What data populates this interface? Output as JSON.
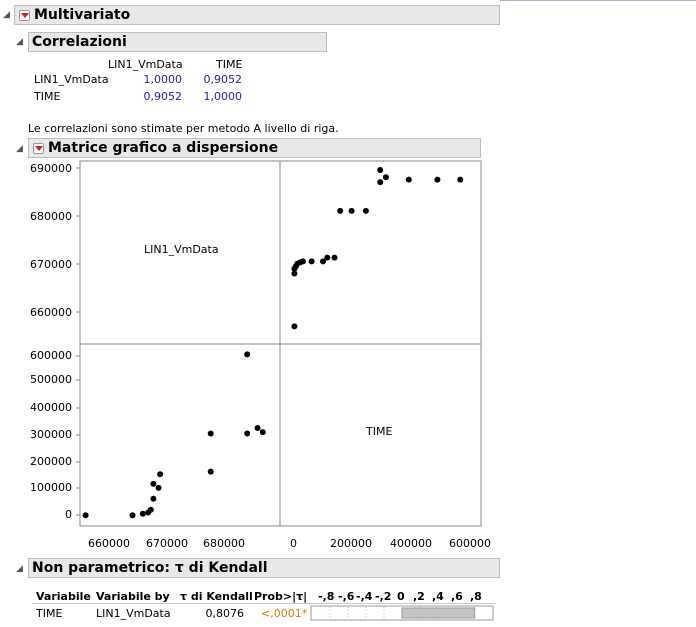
{
  "multivariate": {
    "title": "Multivariato"
  },
  "correlations": {
    "title": "Correlazioni",
    "columns": [
      "LIN1_VmData",
      "TIME"
    ],
    "rows": [
      {
        "label": "LIN1_VmData",
        "values": [
          "1,0000",
          "0,9052"
        ]
      },
      {
        "label": "TIME",
        "values": [
          "0,9052",
          "1,0000"
        ]
      }
    ],
    "note": "Le correlazioni sono stimate per metodo A livello di riga."
  },
  "scatter_matrix": {
    "title": "Matrice grafico a dispersione",
    "var1": "LIN1_VmData",
    "var2": "TIME",
    "y_ticks_top": [
      "690000",
      "680000",
      "670000",
      "660000"
    ],
    "y_ticks_bottom": [
      "600000",
      "500000",
      "400000",
      "300000",
      "200000",
      "100000",
      "0"
    ],
    "x_ticks_left": [
      "660000",
      "670000",
      "680000"
    ],
    "x_ticks_right": [
      "0",
      "200000",
      "400000",
      "600000"
    ]
  },
  "kendall": {
    "title": "Non parametrico: τ di Kendall",
    "headers": [
      "Variabile",
      "Variabile by",
      "τ di Kendall",
      "Prob>|τ|"
    ],
    "scale_labels": [
      "-,8",
      "-,6",
      "-,4",
      "-,2",
      "0",
      ",2",
      ",4",
      ",6",
      ",8"
    ],
    "row": {
      "var": "TIME",
      "by": "LIN1_VmData",
      "tau": "0,8076",
      "prob": "<,0001*"
    },
    "tau_value": 0.8076
  },
  "chart_data": {
    "type": "scatter",
    "xlabel": "",
    "ylabel": "",
    "panels": [
      {
        "name": "TIME vs LIN1_VmData",
        "x_var": "TIME",
        "y_var": "LIN1_VmData",
        "xlim": [
          -5000,
          600000
        ],
        "ylim": [
          654000,
          691000
        ],
        "points": [
          [
            0,
            656000
          ],
          [
            0,
            667000
          ],
          [
            0,
            668000
          ],
          [
            5000,
            668500
          ],
          [
            10000,
            669000
          ],
          [
            20000,
            669300
          ],
          [
            30000,
            669500
          ],
          [
            60000,
            669500
          ],
          [
            100000,
            669500
          ],
          [
            115000,
            670300
          ],
          [
            140000,
            670300
          ],
          [
            160000,
            680000
          ],
          [
            200000,
            680000
          ],
          [
            250000,
            680000
          ],
          [
            300000,
            686000
          ],
          [
            300000,
            688500
          ],
          [
            320000,
            687000
          ],
          [
            400000,
            686500
          ],
          [
            500000,
            686500
          ],
          [
            580000,
            686500
          ]
        ]
      },
      {
        "name": "LIN1_VmData vs TIME",
        "x_var": "LIN1_VmData",
        "y_var": "TIME",
        "xlim": [
          653000,
          691000
        ],
        "ylim": [
          -25000,
          610000
        ],
        "points": [
          [
            656000,
            0
          ],
          [
            665000,
            0
          ],
          [
            667000,
            5000
          ],
          [
            668000,
            10000
          ],
          [
            668500,
            20000
          ],
          [
            669000,
            60000
          ],
          [
            669000,
            115000
          ],
          [
            670000,
            100000
          ],
          [
            670300,
            150000
          ],
          [
            680000,
            160000
          ],
          [
            680000,
            300000
          ],
          [
            687000,
            300000
          ],
          [
            687000,
            590000
          ],
          [
            689000,
            320000
          ],
          [
            690000,
            305000
          ]
        ]
      }
    ]
  }
}
